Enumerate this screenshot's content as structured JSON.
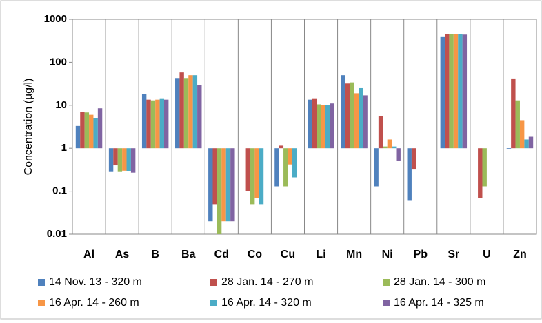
{
  "chart_data": {
    "type": "bar",
    "y_label": "Concentration (µg/l)",
    "log_scale": true,
    "categories": [
      "Al",
      "As",
      "B",
      "Ba",
      "Cd",
      "Co",
      "Cu",
      "Li",
      "Mn",
      "Ni",
      "Pb",
      "Sr",
      "U",
      "Zn"
    ],
    "series": [
      {
        "name": "14 Nov. 13 - 320 m",
        "color": "#4f81bd",
        "values": [
          3.3,
          0.28,
          18,
          43,
          0.02,
          null,
          0.13,
          13.5,
          50,
          0.13,
          0.06,
          400,
          null,
          0.95
        ]
      },
      {
        "name": "28 Jan. 14 - 270 m",
        "color": "#c0504d",
        "values": [
          7,
          0.4,
          13.5,
          58,
          0.05,
          0.1,
          1.15,
          14,
          32,
          5.5,
          0.32,
          460,
          0.07,
          42
        ]
      },
      {
        "name": "28 Jan. 14 - 300 m",
        "color": "#9bbb59",
        "values": [
          6.8,
          0.28,
          13,
          43,
          0.01,
          0.05,
          0.13,
          10.5,
          34,
          1.1,
          null,
          460,
          0.13,
          13
        ]
      },
      {
        "name": "16 Apr. 14 - 260 m",
        "color": "#f79646",
        "values": [
          6,
          0.3,
          13.5,
          50,
          0.02,
          0.07,
          0.42,
          10,
          19,
          1.6,
          null,
          460,
          null,
          4.5
        ]
      },
      {
        "name": "16 Apr. 14 - 320 m",
        "color": "#4bacc6",
        "values": [
          5,
          0.29,
          14,
          50,
          0.02,
          0.05,
          0.21,
          10,
          25,
          1.1,
          null,
          460,
          null,
          1.6
        ]
      },
      {
        "name": "16 Apr. 14 - 325 m",
        "color": "#8064a2",
        "values": [
          8.5,
          0.27,
          13.5,
          29,
          0.02,
          null,
          null,
          11,
          17,
          0.5,
          null,
          440,
          null,
          1.85
        ]
      }
    ],
    "ylim": [
      0.01,
      1000
    ],
    "yticks": [
      0.01,
      0.1,
      1,
      10,
      100,
      1000
    ],
    "grid": false
  }
}
